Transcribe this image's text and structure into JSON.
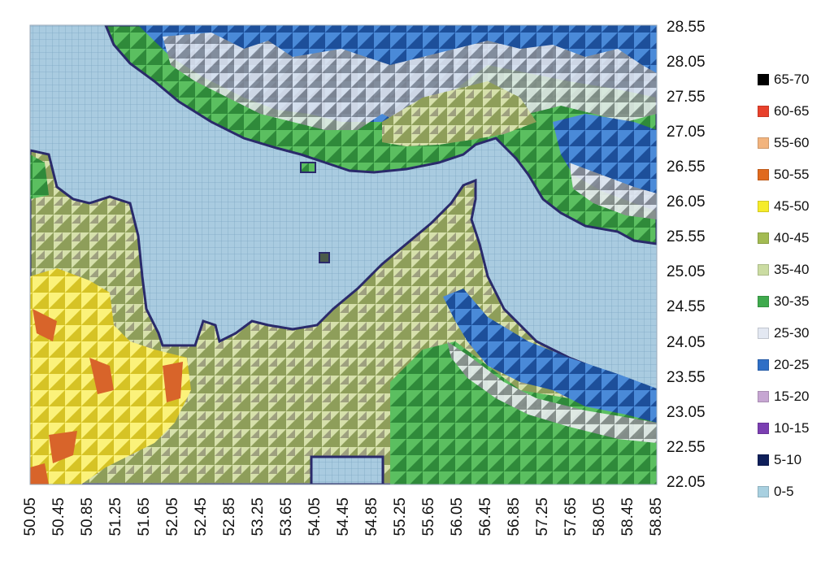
{
  "map": {
    "legend": [
      {
        "label": "65-70",
        "color": "#000000"
      },
      {
        "label": "60-65",
        "color": "#e8412c"
      },
      {
        "label": "55-60",
        "color": "#f2b47e"
      },
      {
        "label": "50-55",
        "color": "#e06a1e"
      },
      {
        "label": "45-50",
        "color": "#f6ec2a"
      },
      {
        "label": "40-45",
        "color": "#a3bb52"
      },
      {
        "label": "35-40",
        "color": "#cbdca2"
      },
      {
        "label": "30-35",
        "color": "#3faa4d"
      },
      {
        "label": "25-30",
        "color": "#e3e8f2"
      },
      {
        "label": "20-25",
        "color": "#2f6fc6"
      },
      {
        "label": "15-20",
        "color": "#c6a6d2"
      },
      {
        "label": "10-15",
        "color": "#7b3fb2"
      },
      {
        "label": "5-10",
        "color": "#0f1f5a"
      },
      {
        "label": "0-5",
        "color": "#a8d0e0"
      }
    ],
    "y_ticks": [
      "28.55",
      "28.05",
      "27.55",
      "27.05",
      "26.55",
      "26.05",
      "25.55",
      "25.05",
      "24.55",
      "24.05",
      "23.55",
      "23.05",
      "22.55",
      "22.05"
    ],
    "x_ticks": [
      "50.05",
      "50.45",
      "50.85",
      "51.25",
      "51.65",
      "52.05",
      "52.45",
      "52.85",
      "53.25",
      "53.65",
      "54.05",
      "54.45",
      "54.85",
      "55.25",
      "55.65",
      "56.05",
      "56.45",
      "56.85",
      "57.25",
      "57.65",
      "58.05",
      "58.45",
      "58.85"
    ]
  }
}
